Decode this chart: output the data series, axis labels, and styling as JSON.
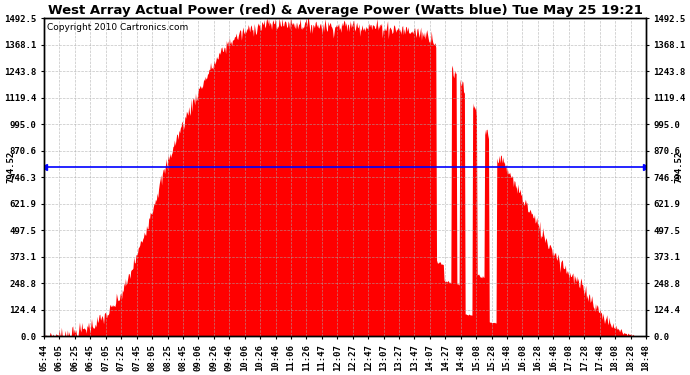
{
  "title": "West Array Actual Power (red) & Average Power (Watts blue) Tue May 25 19:21",
  "copyright": "Copyright 2010 Cartronics.com",
  "avg_power": 794.52,
  "ymax": 1492.5,
  "ymin": 0.0,
  "ytick_values": [
    0.0,
    124.4,
    248.8,
    373.1,
    497.5,
    621.9,
    746.3,
    870.6,
    995.0,
    1119.4,
    1243.8,
    1368.1,
    1492.5
  ],
  "xtick_labels": [
    "05:44",
    "06:05",
    "06:25",
    "06:45",
    "07:05",
    "07:25",
    "07:45",
    "08:05",
    "08:25",
    "08:45",
    "09:06",
    "09:26",
    "09:46",
    "10:06",
    "10:26",
    "10:46",
    "11:06",
    "11:26",
    "11:47",
    "12:07",
    "12:27",
    "12:47",
    "13:07",
    "13:27",
    "13:47",
    "14:07",
    "14:27",
    "14:48",
    "15:08",
    "15:28",
    "15:48",
    "16:08",
    "16:28",
    "16:48",
    "17:08",
    "17:28",
    "17:48",
    "18:08",
    "18:28",
    "18:48"
  ],
  "fill_color": "#FF0000",
  "line_color": "#0000FF",
  "avg_label": "794.52",
  "background_color": "#FFFFFF",
  "grid_color": "#AAAAAA",
  "title_fontsize": 9.5,
  "copyright_fontsize": 6.5,
  "tick_fontsize": 6.5
}
